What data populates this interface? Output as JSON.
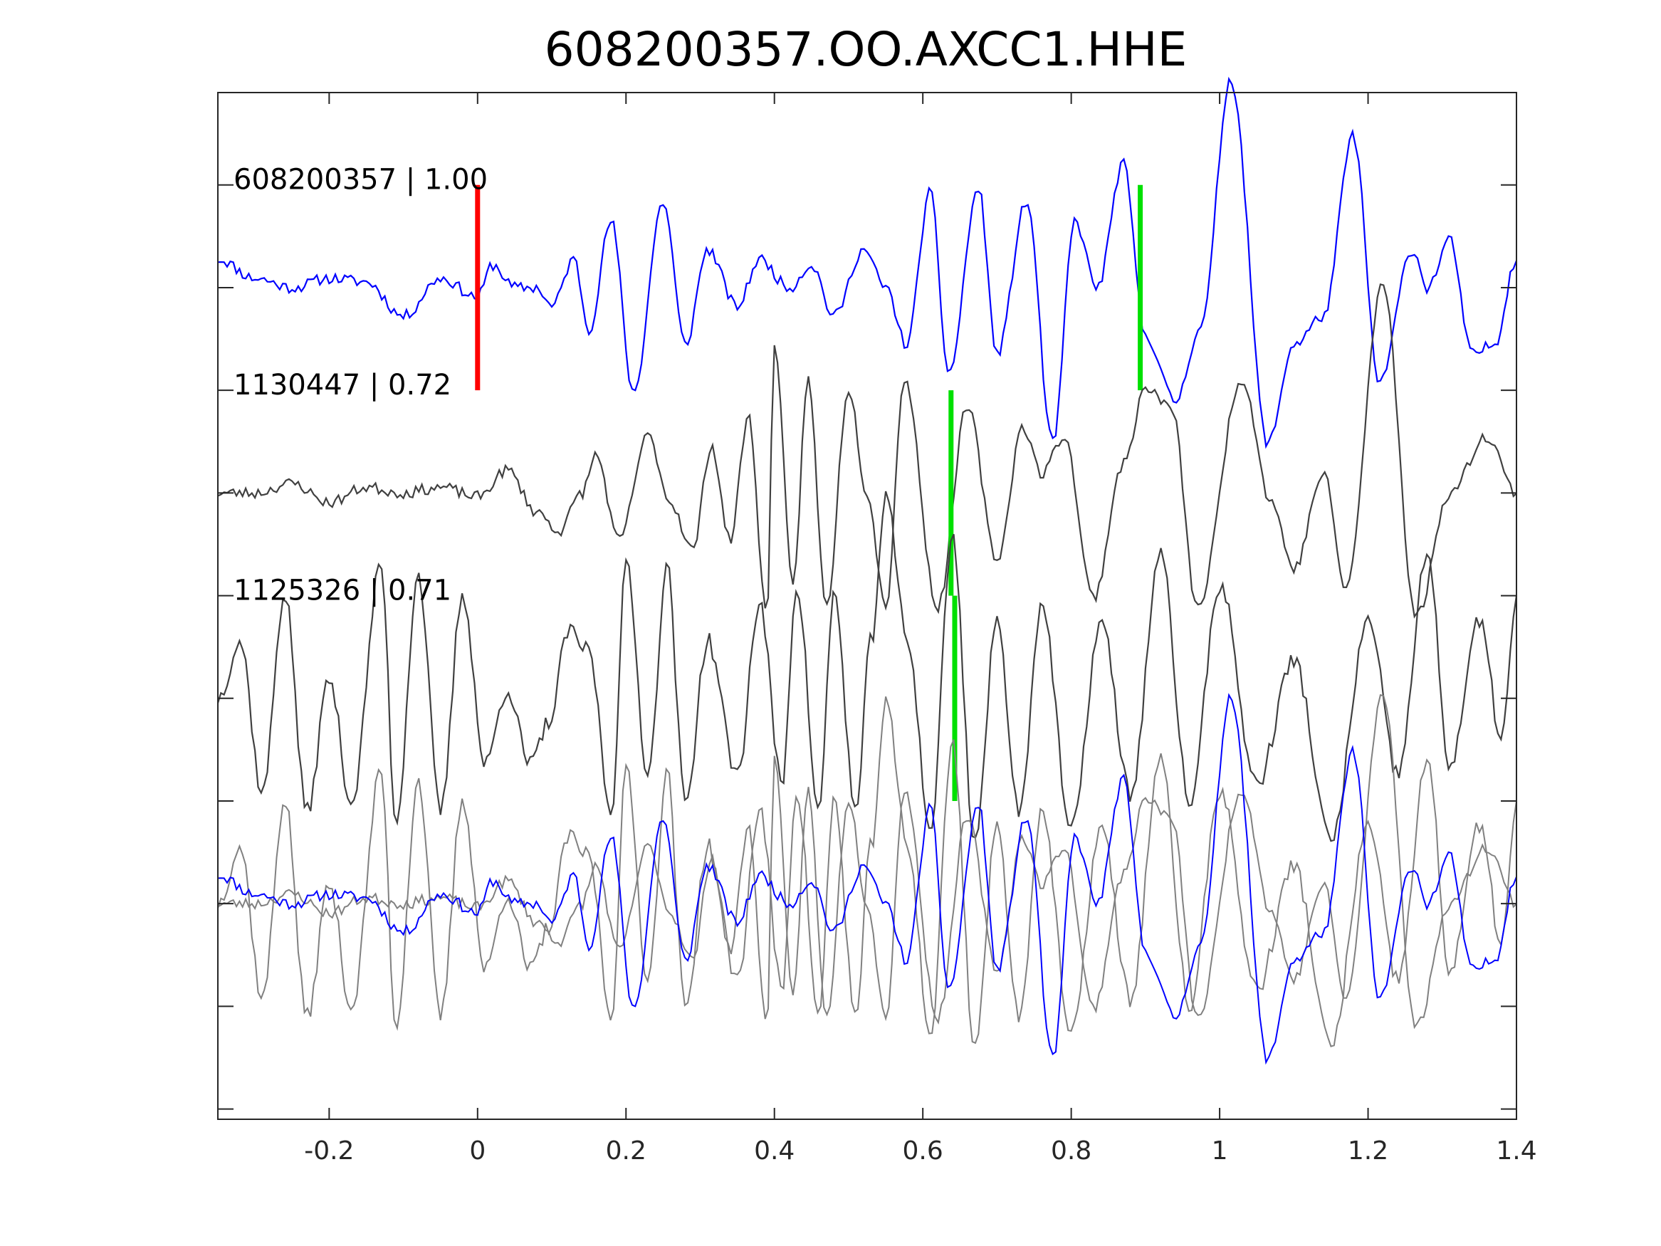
{
  "chart_data": {
    "type": "line",
    "title": "608200357.OO.AXCC1.HHE",
    "xlabel": "",
    "ylabel": "",
    "xlim": [
      -0.35,
      1.4
    ],
    "xticks": [
      -0.2,
      0,
      0.2,
      0.4,
      0.6,
      0.8,
      1,
      1.2,
      1.4
    ],
    "xtick_labels": [
      "-0.2",
      "0",
      "0.2",
      "0.4",
      "0.6",
      "0.8",
      "1",
      "1.2",
      "1.4"
    ],
    "grid": false,
    "traces": [
      {
        "label": "608200357 | 1.00",
        "id": "608200357",
        "cc": "1.00",
        "color": "#0000ff",
        "offset": 0,
        "picks": [
          {
            "time": 0.0,
            "color": "#ff0000"
          },
          {
            "time": 0.893,
            "color": "#00e000"
          }
        ],
        "anchors": [
          [
            -0.35,
            0.15
          ],
          [
            -0.3,
            0.05
          ],
          [
            -0.25,
            0.0
          ],
          [
            -0.2,
            0.05
          ],
          [
            -0.15,
            0.03
          ],
          [
            -0.1,
            -0.15
          ],
          [
            -0.05,
            0.05
          ],
          [
            0.0,
            -0.05
          ],
          [
            0.02,
            0.12
          ],
          [
            0.05,
            0.0
          ],
          [
            0.08,
            0.0
          ],
          [
            0.1,
            -0.1
          ],
          [
            0.13,
            0.15
          ],
          [
            0.15,
            -0.22
          ],
          [
            0.18,
            0.35
          ],
          [
            0.21,
            -0.55
          ],
          [
            0.25,
            0.45
          ],
          [
            0.28,
            -0.3
          ],
          [
            0.31,
            0.2
          ],
          [
            0.35,
            -0.1
          ],
          [
            0.38,
            0.15
          ],
          [
            0.42,
            0.0
          ],
          [
            0.45,
            0.12
          ],
          [
            0.48,
            -0.15
          ],
          [
            0.52,
            0.2
          ],
          [
            0.55,
            0.0
          ],
          [
            0.578,
            -0.3
          ],
          [
            0.61,
            0.5
          ],
          [
            0.635,
            -0.45
          ],
          [
            0.675,
            0.52
          ],
          [
            0.7,
            -0.35
          ],
          [
            0.74,
            0.45
          ],
          [
            0.775,
            -0.82
          ],
          [
            0.805,
            0.35
          ],
          [
            0.835,
            0.0
          ],
          [
            0.87,
            0.65
          ],
          [
            0.9,
            -0.25
          ],
          [
            0.94,
            -0.6
          ],
          [
            0.975,
            -0.2
          ],
          [
            1.015,
            1.1
          ],
          [
            1.065,
            -0.82
          ],
          [
            1.1,
            -0.3
          ],
          [
            1.14,
            -0.15
          ],
          [
            1.18,
            0.8
          ],
          [
            1.215,
            -0.5
          ],
          [
            1.26,
            0.2
          ],
          [
            1.28,
            0.0
          ],
          [
            1.31,
            0.25
          ],
          [
            1.34,
            -0.35
          ],
          [
            1.37,
            -0.3
          ],
          [
            1.4,
            0.15
          ]
        ]
      },
      {
        "label": "1130447 | 0.72",
        "id": "1130447",
        "cc": "0.72",
        "color": "#404040",
        "offset": -1,
        "picks": [
          {
            "time": 0.638,
            "color": "#00e000"
          }
        ],
        "anchors": [
          [
            -0.35,
            0.0
          ],
          [
            -0.3,
            0.0
          ],
          [
            -0.25,
            0.05
          ],
          [
            -0.2,
            -0.05
          ],
          [
            -0.15,
            0.03
          ],
          [
            -0.1,
            0.0
          ],
          [
            -0.05,
            0.03
          ],
          [
            0.0,
            -0.02
          ],
          [
            0.04,
            0.12
          ],
          [
            0.08,
            -0.1
          ],
          [
            0.11,
            -0.2
          ],
          [
            0.14,
            0.0
          ],
          [
            0.16,
            0.2
          ],
          [
            0.19,
            -0.25
          ],
          [
            0.23,
            0.3
          ],
          [
            0.26,
            -0.05
          ],
          [
            0.29,
            -0.3
          ],
          [
            0.315,
            0.25
          ],
          [
            0.34,
            -0.25
          ],
          [
            0.365,
            0.4
          ],
          [
            0.39,
            -0.65
          ],
          [
            0.4,
            0.8
          ],
          [
            0.425,
            -0.5
          ],
          [
            0.445,
            0.6
          ],
          [
            0.47,
            -0.6
          ],
          [
            0.5,
            0.55
          ],
          [
            0.525,
            0.0
          ],
          [
            0.55,
            -0.6
          ],
          [
            0.575,
            0.6
          ],
          [
            0.62,
            -0.6
          ],
          [
            0.66,
            0.45
          ],
          [
            0.7,
            -0.35
          ],
          [
            0.735,
            0.35
          ],
          [
            0.76,
            0.1
          ],
          [
            0.79,
            0.3
          ],
          [
            0.83,
            -0.55
          ],
          [
            0.87,
            0.15
          ],
          [
            0.9,
            0.55
          ],
          [
            0.935,
            0.45
          ],
          [
            0.97,
            -0.6
          ],
          [
            1.03,
            0.6
          ],
          [
            1.07,
            -0.05
          ],
          [
            1.1,
            -0.4
          ],
          [
            1.14,
            0.1
          ],
          [
            1.17,
            -0.5
          ],
          [
            1.22,
            1.1
          ],
          [
            1.265,
            -0.65
          ],
          [
            1.31,
            0.0
          ],
          [
            1.36,
            0.3
          ],
          [
            1.4,
            0.0
          ]
        ]
      },
      {
        "label": "1125326 | 0.71",
        "id": "1125326",
        "cc": "0.71",
        "color": "#404040",
        "offset": -2,
        "picks": [
          {
            "time": 0.643,
            "color": "#00e000"
          }
        ],
        "anchors": [
          [
            -0.35,
            0.0
          ],
          [
            -0.32,
            0.3
          ],
          [
            -0.29,
            -0.5
          ],
          [
            -0.26,
            0.55
          ],
          [
            -0.23,
            -0.6
          ],
          [
            -0.2,
            0.1
          ],
          [
            -0.17,
            -0.55
          ],
          [
            -0.13,
            0.7
          ],
          [
            -0.11,
            -0.65
          ],
          [
            -0.08,
            0.65
          ],
          [
            -0.05,
            -0.6
          ],
          [
            -0.02,
            0.55
          ],
          [
            0.01,
            -0.35
          ],
          [
            0.04,
            0.05
          ],
          [
            0.07,
            -0.35
          ],
          [
            0.1,
            -0.1
          ],
          [
            0.12,
            0.35
          ],
          [
            0.15,
            0.25
          ],
          [
            0.18,
            -0.6
          ],
          [
            0.2,
            0.7
          ],
          [
            0.23,
            -0.4
          ],
          [
            0.255,
            0.7
          ],
          [
            0.28,
            -0.55
          ],
          [
            0.31,
            0.3
          ],
          [
            0.35,
            -0.4
          ],
          [
            0.38,
            0.5
          ],
          [
            0.41,
            -0.45
          ],
          [
            0.43,
            0.6
          ],
          [
            0.46,
            -0.6
          ],
          [
            0.48,
            0.55
          ],
          [
            0.51,
            -0.6
          ],
          [
            0.53,
            0.3
          ],
          [
            0.55,
            1.05
          ],
          [
            0.58,
            0.3
          ],
          [
            0.61,
            -0.7
          ],
          [
            0.64,
            0.85
          ],
          [
            0.67,
            -0.75
          ],
          [
            0.7,
            0.4
          ],
          [
            0.73,
            -0.6
          ],
          [
            0.76,
            0.5
          ],
          [
            0.8,
            -0.7
          ],
          [
            0.84,
            0.4
          ],
          [
            0.88,
            -0.5
          ],
          [
            0.92,
            0.75
          ],
          [
            0.96,
            -0.55
          ],
          [
            1.0,
            0.6
          ],
          [
            1.05,
            -0.45
          ],
          [
            1.1,
            0.2
          ],
          [
            1.15,
            -0.75
          ],
          [
            1.2,
            0.4
          ],
          [
            1.24,
            -0.4
          ],
          [
            1.28,
            0.75
          ],
          [
            1.31,
            -0.35
          ],
          [
            1.35,
            0.4
          ],
          [
            1.38,
            -0.2
          ],
          [
            1.4,
            0.5
          ]
        ]
      }
    ],
    "overlay": {
      "offset": -3,
      "traces": [
        "608200357",
        "1130447",
        "1125326"
      ],
      "colors": {
        "608200357": "#0000ff",
        "1130447": "#808080",
        "1125326": "#808080"
      }
    }
  }
}
